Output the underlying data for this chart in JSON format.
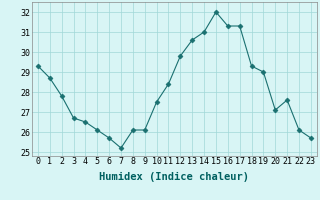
{
  "x": [
    0,
    1,
    2,
    3,
    4,
    5,
    6,
    7,
    8,
    9,
    10,
    11,
    12,
    13,
    14,
    15,
    16,
    17,
    18,
    19,
    20,
    21,
    22,
    23
  ],
  "y": [
    29.3,
    28.7,
    27.8,
    26.7,
    26.5,
    26.1,
    25.7,
    25.2,
    26.1,
    26.1,
    27.5,
    28.4,
    29.8,
    30.6,
    31.0,
    32.0,
    31.3,
    31.3,
    29.3,
    29.0,
    27.1,
    27.6,
    26.1,
    25.7
  ],
  "xlabel": "Humidex (Indice chaleur)",
  "ylim": [
    24.8,
    32.5
  ],
  "xlim": [
    -0.5,
    23.5
  ],
  "yticks": [
    25,
    26,
    27,
    28,
    29,
    30,
    31,
    32
  ],
  "xticks": [
    0,
    1,
    2,
    3,
    4,
    5,
    6,
    7,
    8,
    9,
    10,
    11,
    12,
    13,
    14,
    15,
    16,
    17,
    18,
    19,
    20,
    21,
    22,
    23
  ],
  "line_color": "#1a7070",
  "marker": "D",
  "marker_size": 2.5,
  "bg_color": "#d8f5f5",
  "grid_color": "#a0d8d8",
  "xlabel_fontsize": 7.5,
  "tick_fontsize": 6.0
}
